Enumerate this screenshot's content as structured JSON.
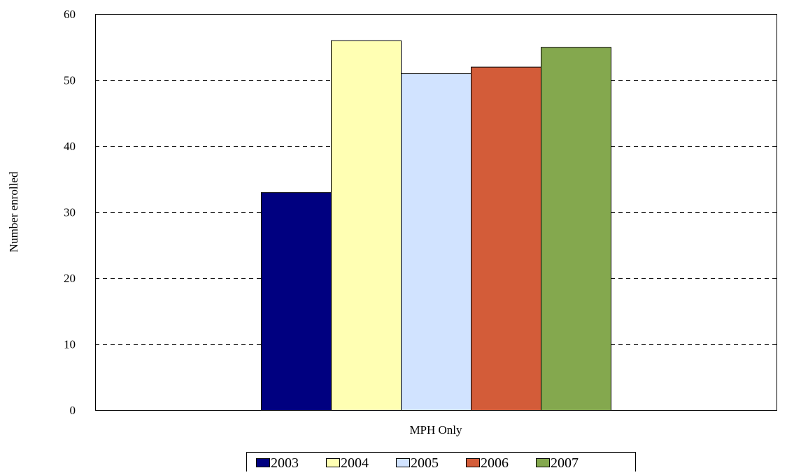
{
  "chart_data": {
    "type": "bar",
    "title": "",
    "xlabel": "",
    "ylabel": "Number enrolled",
    "ylim": [
      0,
      60
    ],
    "yticks": [
      0,
      10,
      20,
      30,
      40,
      50,
      60
    ],
    "categories": [
      "MPH Only"
    ],
    "grid": true,
    "legend_position": "bottom",
    "series": [
      {
        "name": "2003",
        "values": [
          33
        ],
        "color": "#000080"
      },
      {
        "name": "2004",
        "values": [
          56
        ],
        "color": "#ffffb3"
      },
      {
        "name": "2005",
        "values": [
          51
        ],
        "color": "#d1e3ff"
      },
      {
        "name": "2006",
        "values": [
          52
        ],
        "color": "#d35c39"
      },
      {
        "name": "2007",
        "values": [
          55
        ],
        "color": "#84a84e"
      }
    ]
  }
}
